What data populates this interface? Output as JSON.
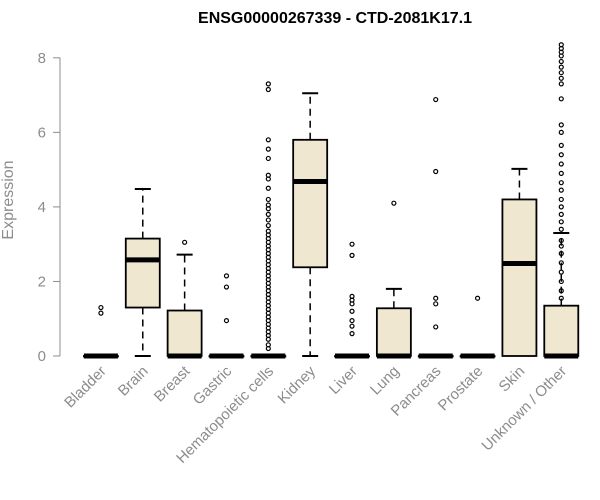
{
  "chart_data": {
    "type": "box",
    "title": "ENSG00000267339 - CTD-2081K17.1",
    "xlabel": "",
    "ylabel": "Expression",
    "ylim": [
      0,
      8.4
    ],
    "yticks": [
      0,
      2,
      4,
      6,
      8
    ],
    "box_color": "#efe7cf",
    "categories": [
      "Bladder",
      "Brain",
      "Breast",
      "Gastric",
      "Hematopoietic cells",
      "Kidney",
      "Liver",
      "Lung",
      "Pancreas",
      "Prostate",
      "Skin",
      "Unknown / Other"
    ],
    "boxes": [
      {
        "category": "Bladder",
        "whisker_low": 0,
        "q1": 0,
        "median": 0,
        "q3": 0,
        "whisker_high": 0,
        "outliers": [
          1.15,
          1.3
        ]
      },
      {
        "category": "Brain",
        "whisker_low": 0,
        "q1": 1.3,
        "median": 2.58,
        "q3": 3.15,
        "whisker_high": 4.48,
        "outliers": []
      },
      {
        "category": "Breast",
        "whisker_low": 0,
        "q1": 0,
        "median": 0,
        "q3": 1.22,
        "whisker_high": 2.72,
        "outliers": [
          3.05
        ]
      },
      {
        "category": "Gastric",
        "whisker_low": 0,
        "q1": 0,
        "median": 0,
        "q3": 0,
        "whisker_high": 0,
        "outliers": [
          0.95,
          1.85,
          2.15
        ]
      },
      {
        "category": "Hematopoietic cells",
        "whisker_low": 0,
        "q1": 0,
        "median": 0,
        "q3": 0,
        "whisker_high": 0,
        "outliers": [
          0.2,
          0.3,
          0.45,
          0.55,
          0.65,
          0.75,
          0.85,
          0.95,
          1.05,
          1.15,
          1.25,
          1.35,
          1.45,
          1.55,
          1.65,
          1.75,
          1.85,
          1.95,
          2.05,
          2.15,
          2.25,
          2.35,
          2.45,
          2.55,
          2.65,
          2.75,
          2.85,
          2.95,
          3.05,
          3.15,
          3.25,
          3.35,
          3.5,
          3.65,
          3.8,
          3.95,
          4.05,
          4.2,
          4.5,
          4.75,
          4.85,
          5.3,
          5.55,
          5.8,
          7.15,
          7.3
        ]
      },
      {
        "category": "Kidney",
        "whisker_low": 0,
        "q1": 2.38,
        "median": 4.68,
        "q3": 5.8,
        "whisker_high": 7.05,
        "outliers": []
      },
      {
        "category": "Liver",
        "whisker_low": 0,
        "q1": 0,
        "median": 0,
        "q3": 0,
        "whisker_high": 0,
        "outliers": [
          0.6,
          0.8,
          0.95,
          1.2,
          1.4,
          1.5,
          1.6,
          2.7,
          3.0
        ]
      },
      {
        "category": "Lung",
        "whisker_low": 0,
        "q1": 0,
        "median": 0,
        "q3": 1.28,
        "whisker_high": 1.8,
        "outliers": [
          4.1
        ]
      },
      {
        "category": "Pancreas",
        "whisker_low": 0,
        "q1": 0,
        "median": 0,
        "q3": 0,
        "whisker_high": 0,
        "outliers": [
          0.78,
          1.4,
          1.55,
          4.95,
          6.88
        ]
      },
      {
        "category": "Prostate",
        "whisker_low": 0,
        "q1": 0,
        "median": 0,
        "q3": 0,
        "whisker_high": 0,
        "outliers": [
          1.55
        ]
      },
      {
        "category": "Skin",
        "whisker_low": 0,
        "q1": 0,
        "median": 2.48,
        "q3": 4.2,
        "whisker_high": 5.02,
        "outliers": []
      },
      {
        "category": "Unknown / Other",
        "whisker_low": 0,
        "q1": 0,
        "median": 0,
        "q3": 1.35,
        "whisker_high": 3.3,
        "outliers": [
          1.55,
          1.75,
          2.0,
          2.25,
          2.5,
          2.75,
          2.95,
          3.1,
          3.4,
          3.6,
          3.8,
          4.0,
          4.2,
          4.45,
          4.65,
          4.9,
          5.15,
          5.4,
          5.65,
          6.0,
          6.2,
          6.9,
          7.3,
          7.45,
          7.6,
          7.75,
          7.9,
          8.05,
          8.15,
          8.25,
          8.35
        ]
      }
    ]
  }
}
